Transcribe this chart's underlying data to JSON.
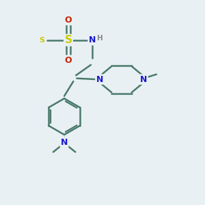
{
  "background_color": "#e8f0f4",
  "bond_color": "#4a7a6a",
  "atom_colors": {
    "N": "#1a1acc",
    "O": "#cc2200",
    "S": "#cccc00",
    "C": "#4a7a6a",
    "H": "#888888"
  },
  "figsize": [
    3.0,
    3.0
  ],
  "dpi": 100
}
